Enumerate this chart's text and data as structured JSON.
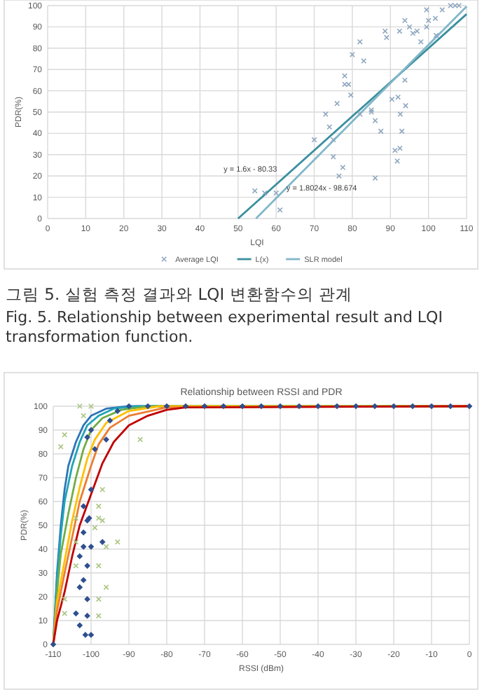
{
  "chart_data": [
    {
      "type": "scatter",
      "xlabel": "LQI",
      "ylabel": "PDR(%)",
      "xlim": [
        0,
        110
      ],
      "ylim": [
        0,
        100
      ],
      "xticks": [
        0,
        10,
        20,
        30,
        40,
        50,
        60,
        70,
        80,
        90,
        100,
        110
      ],
      "yticks": [
        0,
        10,
        20,
        30,
        40,
        50,
        60,
        70,
        80,
        90,
        100
      ],
      "grid": true,
      "legend": "bottom",
      "annotations": [
        "y = 1.6x - 80.33",
        "y = 1.8024x - 98.674"
      ],
      "series": [
        {
          "name": "Average LQI",
          "type": "scatter",
          "marker": "cross",
          "color": "#8fa8c0",
          "x": [
            54.4,
            57,
            60,
            61,
            70,
            73,
            74,
            75,
            75,
            76,
            76.5,
            77.5,
            78,
            78,
            79,
            79.6,
            80,
            82,
            82,
            83,
            85,
            85,
            86,
            86,
            87.5,
            88.6,
            89,
            90.4,
            91.2,
            91.8,
            92,
            92.5,
            92.6,
            93,
            92.4,
            93.8,
            94,
            93.8,
            95,
            95.9,
            97,
            98,
            99.5,
            99.5,
            100,
            101.8,
            102,
            103.6,
            105.8,
            107,
            108
          ],
          "values": [
            13,
            12,
            12,
            4,
            37,
            49,
            43,
            37,
            29,
            54,
            20,
            24,
            67,
            63,
            63,
            58,
            77,
            83,
            49,
            74,
            51,
            50,
            46,
            19,
            41,
            88,
            85,
            56,
            32,
            27,
            57,
            33,
            49,
            41,
            88,
            65,
            53,
            93,
            90,
            87,
            88,
            83,
            90,
            98,
            93,
            94,
            86,
            98,
            100,
            100,
            100
          ]
        },
        {
          "name": "L(x)",
          "type": "line",
          "color": "#3a8f9e",
          "x": [
            50,
            110
          ],
          "values": [
            0,
            96
          ]
        },
        {
          "name": "SLR model",
          "type": "line",
          "color": "#82b6c9",
          "x": [
            54.7,
            110
          ],
          "values": [
            0,
            99.6
          ]
        }
      ]
    },
    {
      "type": "other",
      "annotations": [
        "그림 5.  실험 측정 결과와 LQI 변환함수의 관계",
        "Fig.  5.  Relationship between experimental result and LQI transformation function."
      ]
    },
    {
      "type": "scatter",
      "title": "Relationship between RSSI and PDR",
      "xlabel": "RSSI (dBm)",
      "ylabel": "PDR(%)",
      "xlim": [
        -110,
        0
      ],
      "ylim": [
        0,
        100
      ],
      "xticks": [
        -110,
        -100,
        -90,
        -80,
        -70,
        -60,
        -50,
        -40,
        -30,
        -20,
        -10,
        0
      ],
      "yticks": [
        0,
        10,
        20,
        30,
        40,
        50,
        60,
        70,
        80,
        90,
        100
      ],
      "grid": true,
      "series": [
        {
          "type": "line",
          "color": "#2e75b6",
          "x": [
            -110,
            -109,
            -108,
            -107,
            -106,
            -104,
            -102,
            -100,
            -96,
            -90,
            0
          ],
          "values": [
            0,
            30,
            50,
            65,
            75,
            85,
            92,
            96,
            99,
            100,
            100
          ]
        },
        {
          "type": "line",
          "color": "#1fa5b8",
          "x": [
            -110,
            -109,
            -108,
            -107,
            -105,
            -103,
            -101,
            -98,
            -94,
            -88,
            0
          ],
          "values": [
            0,
            27,
            46,
            60,
            75,
            85,
            92,
            96,
            99,
            100,
            100
          ]
        },
        {
          "type": "line",
          "color": "#70ad47",
          "x": [
            -110,
            -109,
            -108,
            -106,
            -104,
            -102,
            -100,
            -97,
            -92,
            -85,
            0
          ],
          "values": [
            0,
            22,
            38,
            55,
            70,
            82,
            90,
            95,
            98.5,
            100,
            100
          ]
        },
        {
          "type": "line",
          "color": "#ffc000",
          "x": [
            -110,
            -109,
            -107,
            -105,
            -103,
            -101,
            -99,
            -96,
            -90,
            -82,
            0
          ],
          "values": [
            0,
            18,
            35,
            52,
            66,
            78,
            86,
            93,
            98,
            100,
            100
          ]
        },
        {
          "type": "line",
          "color": "#ed7d31",
          "x": [
            -110,
            -109,
            -107,
            -105,
            -103,
            -100,
            -98,
            -95,
            -90,
            -80,
            0
          ],
          "values": [
            0,
            14,
            30,
            45,
            60,
            75,
            84,
            91,
            96,
            99.5,
            100
          ]
        },
        {
          "type": "line",
          "color": "#c00000",
          "x": [
            -110,
            -109,
            -107,
            -105,
            -103,
            -100,
            -97,
            -94,
            -90,
            -85,
            -80,
            -75,
            0
          ],
          "values": [
            0,
            10,
            22,
            37,
            50,
            63,
            76,
            85,
            92,
            96,
            98.5,
            99.5,
            100
          ]
        },
        {
          "type": "scatter",
          "marker": "diamond",
          "color": "#2f4f8f",
          "x": [
            -110,
            -102,
            -101,
            -100.5,
            -102,
            -102,
            -100,
            -101,
            -103,
            -102,
            -103,
            -101,
            -104,
            -103,
            -101,
            -101.5,
            -100,
            -100,
            -97,
            -99,
            -101,
            -100,
            -96,
            -95,
            -93,
            -90,
            -85,
            -80,
            -75,
            -70,
            -65,
            -60,
            -55,
            -50,
            -45,
            -40,
            -35,
            -30,
            -25,
            -20,
            -15,
            -10,
            -5,
            0
          ],
          "values": [
            0,
            58,
            52,
            53,
            47,
            41,
            41,
            33,
            37,
            27,
            24,
            19,
            13,
            8,
            12,
            4,
            4,
            65,
            43,
            82,
            87,
            90,
            86,
            94,
            98,
            100,
            100,
            100,
            100,
            100,
            100,
            100,
            100,
            100,
            100,
            100,
            100,
            100,
            100,
            100,
            100,
            100,
            100,
            100
          ]
        },
        {
          "type": "scatter",
          "marker": "cross",
          "color": "#a9c47f",
          "x": [
            -107,
            -108,
            -107,
            -107,
            -104,
            -104,
            -104,
            -102,
            -103,
            -98,
            -98,
            -97,
            -97,
            -96,
            -96,
            -98,
            -98,
            -93,
            -87,
            -100,
            -98,
            -99
          ],
          "values": [
            88,
            83,
            19,
            13,
            53,
            43,
            33,
            96,
            100,
            58,
            53,
            65,
            52,
            41,
            24,
            19,
            12,
            43,
            86,
            100,
            33,
            49
          ]
        }
      ]
    }
  ]
}
